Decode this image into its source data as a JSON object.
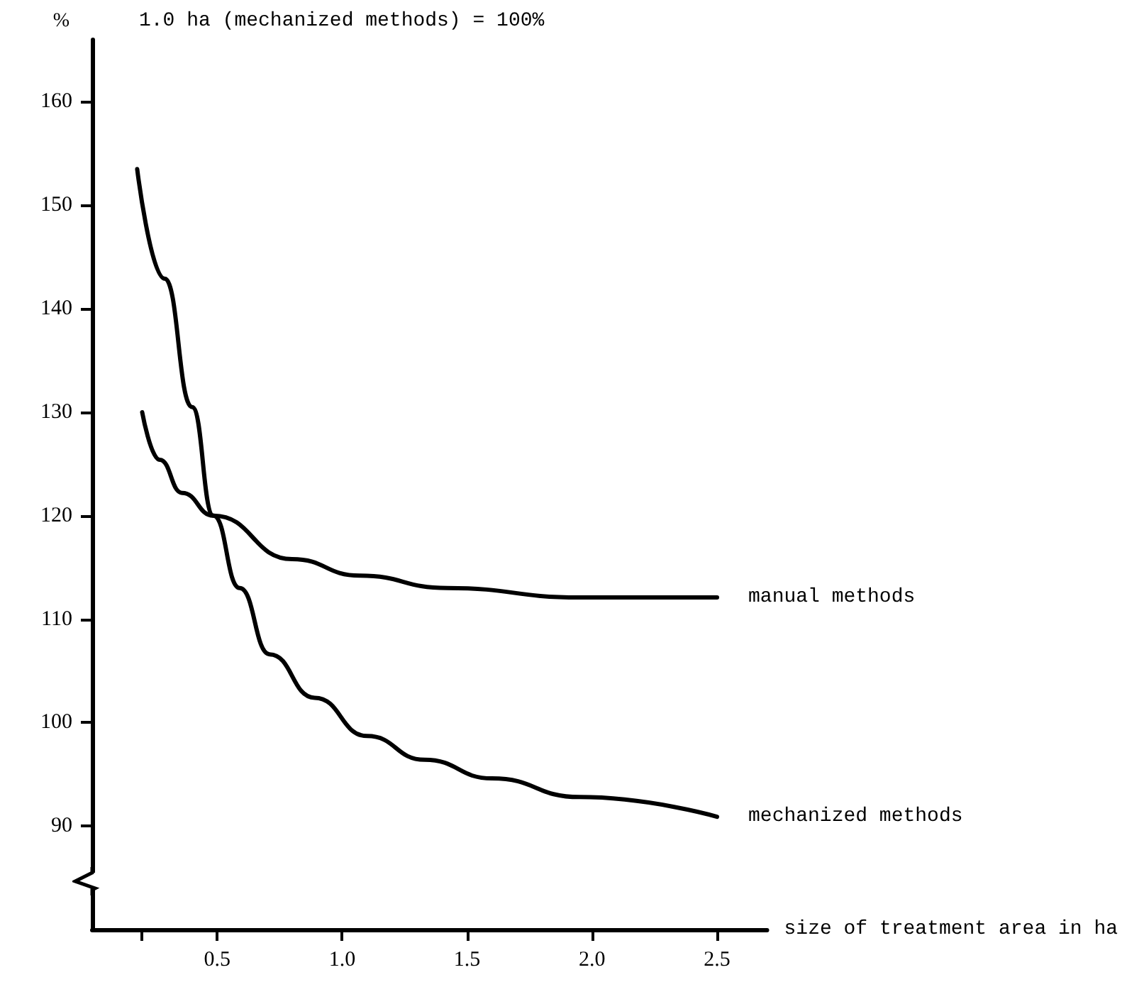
{
  "chart_data": {
    "type": "line",
    "title": "1.0 ha (mechanized methods) = 100%",
    "xlabel": "size of treatment area in ha",
    "ylabel": "%",
    "series": [
      {
        "name": "manual methods",
        "color": "#000000",
        "x": [
          0.2,
          0.27,
          0.36,
          0.485,
          0.8,
          1.07,
          1.42,
          1.95,
          2.5
        ],
        "values": [
          130,
          125.4,
          122.2,
          120,
          115.8,
          114.2,
          113,
          112.1,
          112.1
        ]
      },
      {
        "name": "mechanized methods",
        "color": "#000000",
        "x": [
          0.18,
          0.29,
          0.4,
          0.485,
          0.59,
          0.71,
          0.89,
          1.1,
          1.33,
          1.6,
          1.95,
          2.5
        ],
        "values": [
          153.5,
          142.9,
          130.5,
          120,
          113,
          106.6,
          102.4,
          98.7,
          96.4,
          94.6,
          92.8,
          90.9
        ]
      }
    ],
    "xlim": [
      0,
      2.7
    ],
    "xticks": [
      {
        "value": 0.2,
        "label": null
      },
      {
        "value": 0.5,
        "label": "0.5"
      },
      {
        "value": 1.0,
        "label": "1.0"
      },
      {
        "value": 1.5,
        "label": "1.5"
      },
      {
        "value": 2.0,
        "label": "2.0"
      },
      {
        "value": 2.5,
        "label": "2.5"
      }
    ],
    "ylim": [
      80,
      166
    ],
    "yticks": [
      90,
      100,
      110,
      120,
      130,
      140,
      150,
      160
    ],
    "grid": false,
    "legend": false,
    "marker": "none",
    "line_style": "solid"
  }
}
